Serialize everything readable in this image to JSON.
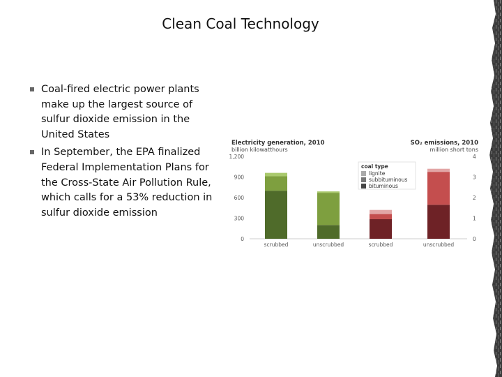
{
  "slide": {
    "title": "Clean Coal Technology",
    "bullets": [
      "Coal-fired electric power plants make up the largest source of sulfur dioxide emission in the United States",
      "In September, the EPA finalized Federal Implementation Plans for the Cross-State Air Pollution Rule, which calls for a 53% reduction in sulfur dioxide emission"
    ]
  },
  "chart_data": {
    "type": "bar",
    "stacked": true,
    "left_panel": {
      "title": "Electricity generation, 2010",
      "unit": "billion kilowatthours",
      "ylim": [
        0,
        1200
      ],
      "yticks": [
        "0",
        "300",
        "600",
        "900",
        "1,200"
      ],
      "categories": [
        "scrubbed",
        "unscrubbed"
      ],
      "series": [
        {
          "name": "bituminous",
          "values": [
            700,
            200
          ]
        },
        {
          "name": "subbituminous",
          "values": [
            210,
            470
          ]
        },
        {
          "name": "lignite",
          "values": [
            50,
            20
          ]
        }
      ]
    },
    "right_panel": {
      "title": "SO₂ emissions, 2010",
      "unit": "million short tons",
      "ylim": [
        0,
        4
      ],
      "yticks": [
        "0",
        "1",
        "2",
        "3",
        "4"
      ],
      "categories": [
        "scrubbed",
        "unscrubbed"
      ],
      "series": [
        {
          "name": "bituminous",
          "values": [
            0.95,
            1.65
          ]
        },
        {
          "name": "subbituminous",
          "values": [
            0.25,
            1.6
          ]
        },
        {
          "name": "lignite",
          "values": [
            0.2,
            0.15
          ]
        }
      ]
    },
    "legend": {
      "title": "coal type",
      "position": "top-center",
      "items": [
        "lignite",
        "subbituminous",
        "bituminous"
      ]
    },
    "grid": false
  },
  "colors": {
    "generation": {
      "bituminous": "#4f6b2a",
      "subbituminous": "#7e9f3f",
      "lignite": "#a9c96d"
    },
    "emissions": {
      "bituminous": "#6e2226",
      "subbituminous": "#c44e4e",
      "lignite": "#e2a6a6"
    },
    "legend": {
      "lignite": "#aaaaaa",
      "subbituminous": "#777777",
      "bituminous": "#444444"
    },
    "axis": "#bbbbbb",
    "label_text": "#333333"
  }
}
